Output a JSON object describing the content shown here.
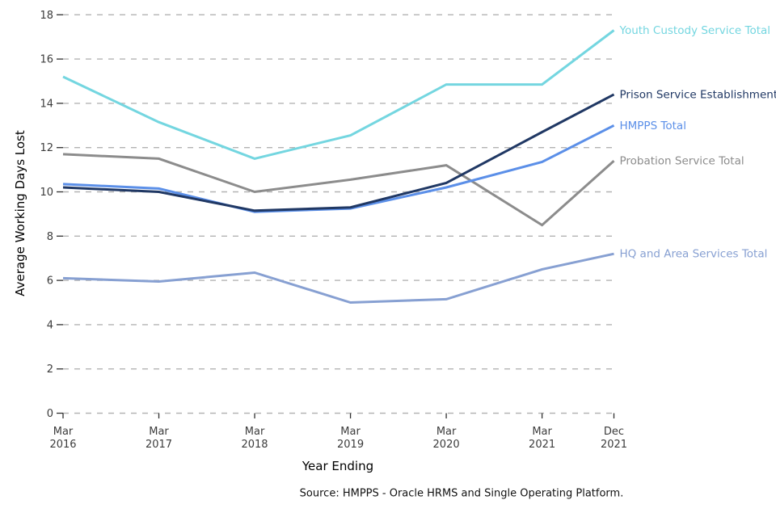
{
  "figure": {
    "y_axis_title": "Average Working Days Lost",
    "x_axis_title": "Year Ending",
    "source": "Source: HMPPS - Oracle HRMS and Single Operating Platform."
  },
  "chart_data": {
    "type": "line",
    "title": "",
    "xlabel": "Year Ending",
    "ylabel": "Average Working Days Lost",
    "source": "Source: HMPPS - Oracle HRMS and Single Operating Platform.",
    "grid": "horizontal-dashed",
    "legend_position": "labels-at-line-ends-right",
    "ylim": [
      0,
      18
    ],
    "y_ticks": [
      0,
      2,
      4,
      6,
      8,
      10,
      12,
      14,
      16,
      18
    ],
    "categories": [
      "Mar 2016",
      "Mar 2017",
      "Mar 2018",
      "Mar 2019",
      "Mar 2020",
      "Mar 2021",
      "Dec 2021"
    ],
    "x_tick_labels": [
      [
        "Mar",
        "2016"
      ],
      [
        "Mar",
        "2017"
      ],
      [
        "Mar",
        "2018"
      ],
      [
        "Mar",
        "2019"
      ],
      [
        "Mar",
        "2020"
      ],
      [
        "Mar",
        "2021"
      ],
      [
        "Dec",
        "2021"
      ]
    ],
    "x_positions": [
      0,
      1,
      2,
      3,
      4,
      5,
      5.75
    ],
    "series": [
      {
        "name": "Youth Custody Service Total",
        "color": "#74d6e0",
        "values": [
          15.2,
          13.15,
          11.5,
          12.55,
          14.85,
          14.85,
          17.3
        ]
      },
      {
        "name": "Prison Service Establishment Total",
        "color": "#203864",
        "values": [
          10.2,
          10.0,
          9.15,
          9.3,
          10.4,
          12.7,
          14.4
        ]
      },
      {
        "name": "HMPPS Total",
        "color": "#5b8fe8",
        "values": [
          10.35,
          10.15,
          9.1,
          9.25,
          10.2,
          11.35,
          13.0
        ]
      },
      {
        "name": "Probation Service Total",
        "color": "#8c8c8c",
        "values": [
          11.7,
          11.5,
          10.0,
          10.55,
          11.2,
          8.5,
          11.4
        ]
      },
      {
        "name": "HQ and Area Services Total",
        "color": "#87a0d2",
        "values": [
          6.1,
          5.95,
          6.35,
          5.0,
          5.15,
          6.5,
          7.2
        ]
      }
    ]
  }
}
